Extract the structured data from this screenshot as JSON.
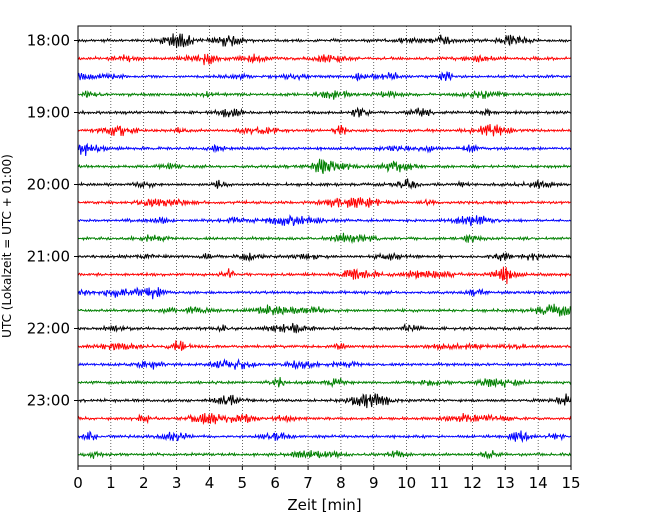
{
  "chart_data": {
    "type": "line",
    "title": "",
    "xlabel": "Zeit  [min]",
    "ylabel": "UTC (Lokalzeit = UTC + 01:00)",
    "xlim": [
      0,
      15
    ],
    "x_ticks": [
      "0",
      "1",
      "2",
      "3",
      "4",
      "5",
      "6",
      "7",
      "8",
      "9",
      "10",
      "11",
      "12",
      "13",
      "14",
      "15"
    ],
    "y_ticks": [
      {
        "time": "18:00",
        "row": 0
      },
      {
        "time": "19:00",
        "row": 4
      },
      {
        "time": "20:00",
        "row": 8
      },
      {
        "time": "21:00",
        "row": 12
      },
      {
        "time": "22:00",
        "row": 16
      },
      {
        "time": "23:00",
        "row": 20
      }
    ],
    "grid": "vertical dotted at each minute",
    "legend": "none",
    "row_colors": [
      "#000000",
      "#ff0000",
      "#0000ff",
      "#008000"
    ],
    "series": [
      {
        "start": "18:00",
        "color": "#000000"
      },
      {
        "start": "18:15",
        "color": "#ff0000"
      },
      {
        "start": "18:30",
        "color": "#0000ff"
      },
      {
        "start": "18:45",
        "color": "#008000"
      },
      {
        "start": "19:00",
        "color": "#000000"
      },
      {
        "start": "19:15",
        "color": "#ff0000"
      },
      {
        "start": "19:30",
        "color": "#0000ff"
      },
      {
        "start": "19:45",
        "color": "#008000"
      },
      {
        "start": "20:00",
        "color": "#000000"
      },
      {
        "start": "20:15",
        "color": "#ff0000"
      },
      {
        "start": "20:30",
        "color": "#0000ff"
      },
      {
        "start": "20:45",
        "color": "#008000"
      },
      {
        "start": "21:00",
        "color": "#000000"
      },
      {
        "start": "21:15",
        "color": "#ff0000"
      },
      {
        "start": "21:30",
        "color": "#0000ff"
      },
      {
        "start": "21:45",
        "color": "#008000"
      },
      {
        "start": "22:00",
        "color": "#000000"
      },
      {
        "start": "22:15",
        "color": "#ff0000"
      },
      {
        "start": "22:30",
        "color": "#0000ff"
      },
      {
        "start": "22:45",
        "color": "#008000"
      },
      {
        "start": "23:00",
        "color": "#000000"
      },
      {
        "start": "23:15",
        "color": "#ff0000"
      },
      {
        "start": "23:30",
        "color": "#0000ff"
      },
      {
        "start": "23:45",
        "color": "#008000"
      }
    ]
  }
}
